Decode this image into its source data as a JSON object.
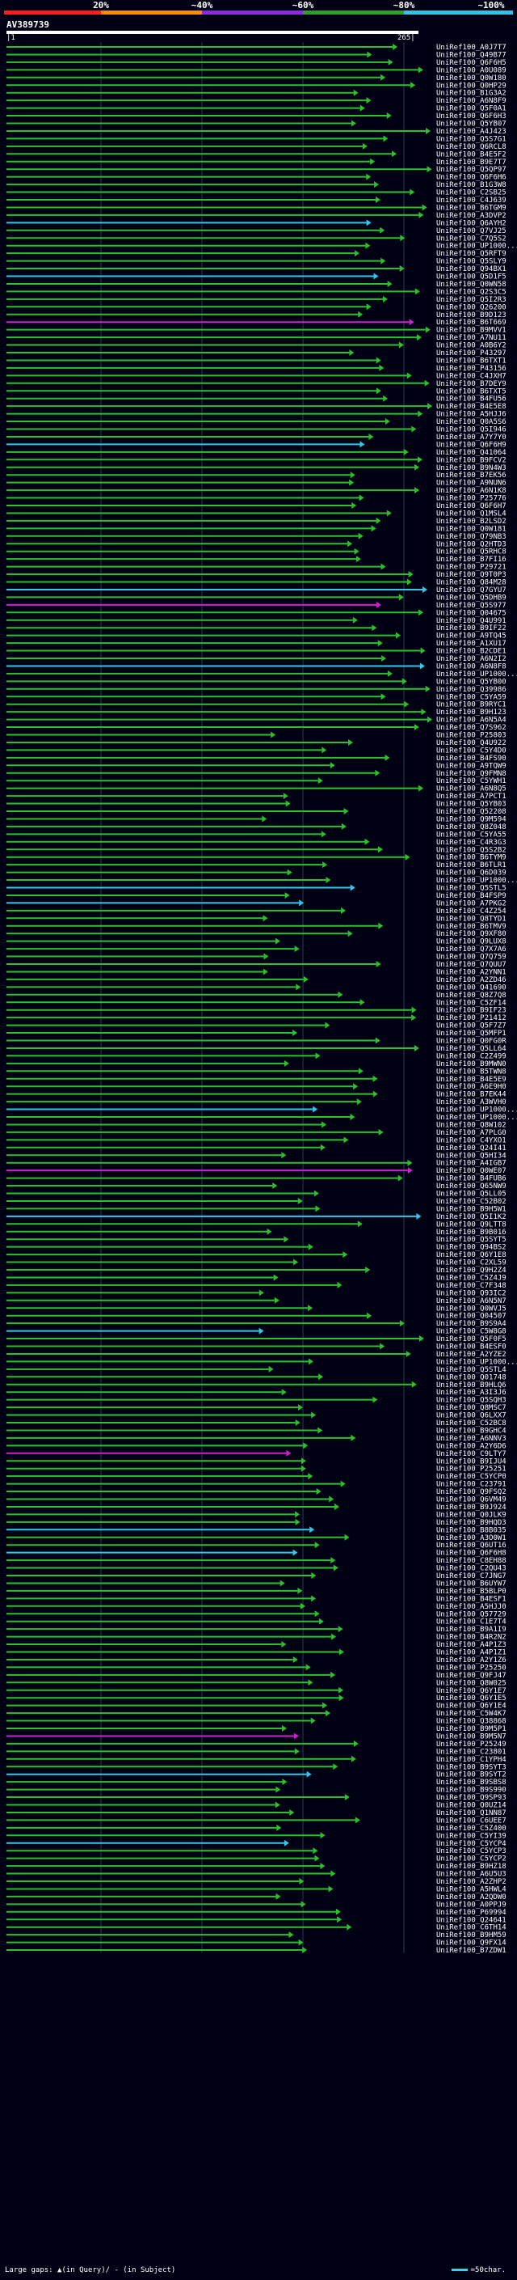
{
  "legend": {
    "marks": [
      "20%",
      "~40%",
      "~60%",
      "~80%",
      "~100%"
    ],
    "colors": [
      "#ff1c1c",
      "#ff8c00",
      "#8a2be2",
      "#2e9e2e",
      "#31c3e6"
    ]
  },
  "query": {
    "title": "AV389739",
    "start": "|1",
    "end": "265|"
  },
  "hits": [
    "UniRef100_A0J7T7",
    "UniRef100_Q49B77",
    "UniRef100_Q6F6H5",
    "UniRef100_A0U089",
    "UniRef100_Q0W180",
    "UniRef100_Q0HP29",
    "UniRef100_B1G3A2",
    "UniRef100_A6N8F9",
    "UniRef100_Q5F0A1",
    "UniRef100_Q6F6H3",
    "UniRef100_Q5YB07",
    "UniRef100_A4J423",
    "UniRef100_Q5S7G1",
    "UniRef100_Q6RCL8",
    "UniRef100_B4E5F2",
    "UniRef100_B9E7T7",
    "UniRef100_Q5QP97",
    "UniRef100_Q6F6H6",
    "UniRef100_B1G3W8",
    "UniRef100_C2SB25",
    "UniRef100_C4J639",
    "UniRef100_B6TGM9",
    "UniRef100_A3DVP2",
    "UniRef100_Q6AYH2",
    "UniRef100_Q7VJ25",
    "UniRef100_C7Q5S2",
    "UniRef100_UP1000...",
    "UniRef100_Q5RFT9",
    "UniRef100_Q5SLY9",
    "UniRef100_Q94BX1",
    "UniRef100_Q5D1F5",
    "UniRef100_Q0WN58",
    "UniRef100_Q2S3C5",
    "UniRef100_Q5I2R3",
    "UniRef100_Q26200",
    "UniRef100_B9D123",
    "UniRef100_B6T669",
    "UniRef100_B9MVV1",
    "UniRef100_A7NU11",
    "UniRef100_A0B6Y2",
    "UniRef100_P43297",
    "UniRef100_B6TXT1",
    "UniRef100_P43156",
    "UniRef100_C4JXH7",
    "UniRef100_B7DEY9",
    "UniRef100_B6TXT5",
    "UniRef100_B4FU56",
    "UniRef100_B4E5E8",
    "UniRef100_A5HJJ6",
    "UniRef100_Q0A5S6",
    "UniRef100_Q5I946",
    "UniRef100_A7Y7Y0",
    "UniRef100_Q6F6H9",
    "UniRef100_Q41064",
    "UniRef100_B9FCV2",
    "UniRef100_B9N4W3",
    "UniRef100_B7EK56",
    "UniRef100_A9NUN6",
    "UniRef100_A6N1K8",
    "UniRef100_P25776",
    "UniRef100_Q6F6H7",
    "UniRef100_Q1MSL4",
    "UniRef100_B2LSD2",
    "UniRef100_Q0W181",
    "UniRef100_Q79NB3",
    "UniRef100_Q2HTD3",
    "UniRef100_Q5RHC8",
    "UniRef100_B7FI16",
    "UniRef100_P29721",
    "UniRef100_Q9T0P3",
    "UniRef100_Q84M28",
    "UniRef100_Q7GYU7",
    "UniRef100_Q5DHB9",
    "UniRef100_Q5S977",
    "UniRef100_Q04675",
    "UniRef100_Q4U991",
    "UniRef100_B9IF22",
    "UniRef100_A9TQ45",
    "UniRef100_A1XU17",
    "UniRef100_B2CDE1",
    "UniRef100_A6N2I2",
    "UniRef100_A6N8F8",
    "UniRef100_UP1000...",
    "UniRef100_Q5YB00",
    "UniRef100_Q39986",
    "UniRef100_C5YA59",
    "UniRef100_B9RYC1",
    "UniRef100_B9H123",
    "UniRef100_A6N5A4",
    "UniRef100_Q7S962",
    "UniRef100_P25803",
    "UniRef100_Q4U922",
    "UniRef100_C5Y4D0",
    "UniRef100_B4FS90",
    "UniRef100_A9TQW9",
    "UniRef100_Q9FMN8",
    "UniRef100_C5YWH1",
    "UniRef100_A6N8Q5",
    "UniRef100_A7PCT1",
    "UniRef100_Q5YB03",
    "UniRef100_Q52208",
    "UniRef100_Q9M594",
    "UniRef100_Q8Z048",
    "UniRef100_C5YA55",
    "UniRef100_C4R3G3",
    "UniRef100_Q5S2B2",
    "UniRef100_B6TYM9",
    "UniRef100_B6TLR1",
    "UniRef100_Q6D039",
    "UniRef100_UP1000...",
    "UniRef100_Q5STL5",
    "UniRef100_B4FSP9",
    "UniRef100_A7PKG2",
    "UniRef100_C4Z254",
    "UniRef100_Q8TYD1",
    "UniRef100_B6TMV9",
    "UniRef100_Q9XF80",
    "UniRef100_Q9LUX8",
    "UniRef100_Q7X7A6",
    "UniRef100_Q7Q759",
    "UniRef100_Q7QUU7",
    "UniRef100_A2YNN1",
    "UniRef100_A2ZD46",
    "UniRef100_Q41690",
    "UniRef100_Q8Z7Q8",
    "UniRef100_C5ZF14",
    "UniRef100_B9IF23",
    "UniRef100_P21412",
    "UniRef100_Q5F7Z7",
    "UniRef100_Q5MFP1",
    "UniRef100_Q0FG0R",
    "UniRef100_Q5LL64",
    "UniRef100_C2Z499",
    "UniRef100_B9MWN0",
    "UniRef100_B5TWN8",
    "UniRef100_B4E5E9",
    "UniRef100_A6E9H0",
    "UniRef100_B7EK44",
    "UniRef100_A3WVH0",
    "UniRef100_UP1000...",
    "UniRef100_UP1000...",
    "UniRef100_Q8W102",
    "UniRef100_A7PLG0",
    "UniRef100_C4YXO1",
    "UniRef100_Q24I41",
    "UniRef100_Q5HI34",
    "UniRef100_A4IGB7",
    "UniRef100_Q0WE07",
    "UniRef100_B4FUB6",
    "UniRef100_Q65NW9",
    "UniRef100_Q5LL05",
    "UniRef100_C52B02",
    "UniRef100_B9H5W1",
    "UniRef100_Q5I1K2",
    "UniRef100_Q9LTT8",
    "UniRef100_B9B016",
    "UniRef100_Q5SYT5",
    "UniRef100_Q94BS2",
    "UniRef100_Q6Y1E8",
    "UniRef100_C2XL59",
    "UniRef100_Q9H2Z4",
    "UniRef100_C5Z4J9",
    "UniRef100_C7F348",
    "UniRef100_Q93IC2",
    "UniRef100_A6N5N7",
    "UniRef100_Q0WVJ5",
    "UniRef100_Q04507",
    "UniRef100_B9S9A4",
    "UniRef100_C5W8G8",
    "UniRef100_Q5F0F5",
    "UniRef100_B4ESF0",
    "UniRef100_A2YZE2",
    "UniRef100_UP1000...",
    "UniRef100_Q5STL4",
    "UniRef100_Q01748",
    "UniRef100_B9HLQ6",
    "UniRef100_A3I3J6",
    "UniRef100_Q5SQH3",
    "UniRef100_Q8MSC7",
    "UniRef100_Q6LXX7",
    "UniRef100_C52BC8",
    "UniRef100_B9GHC4",
    "UniRef100_A6NNV3",
    "UniRef100_A2Y6D6",
    "UniRef100_C9LTY7",
    "UniRef100_B9IJU4",
    "UniRef100_P25251",
    "UniRef100_C5YCP0",
    "UniRef100_C23791",
    "UniRef100_Q9FSQ2",
    "UniRef100_Q6VM49",
    "UniRef100_B9J924",
    "UniRef100_Q0JLK9",
    "UniRef100_B9HQD3",
    "UniRef100_B8B035",
    "UniRef100_A3O0W1",
    "UniRef100_Q6UT16",
    "UniRef100_Q6F6H8",
    "UniRef100_C8EH88",
    "UniRef100_C2QU43",
    "UniRef100_C7JNG7",
    "UniRef100_B6UYW7",
    "UniRef100_B5BLP0",
    "UniRef100_B4ESF1",
    "UniRef100_A5HJJ0",
    "UniRef100_Q57729",
    "UniRef100_C1E7T4",
    "UniRef100_B9A1I9",
    "UniRef100_B4R2N2",
    "UniRef100_A4P1Z3",
    "UniRef100_A4P1Z1",
    "UniRef100_A2Y1Z6",
    "UniRef100_P25250",
    "UniRef100_Q9FJ47",
    "UniRef100_Q8W025",
    "UniRef100_Q6Y1E7",
    "UniRef100_Q6Y1E5",
    "UniRef100_Q6Y1E4",
    "UniRef100_C5W4K7",
    "UniRef100_Q38868",
    "UniRef100_B9M5P1",
    "UniRef100_B9M5N7",
    "UniRef100_P25249",
    "UniRef100_C23801",
    "UniRef100_C1YPH4",
    "UniRef100_B9SYT3",
    "UniRef100_B9SYT2",
    "UniRef100_B9SBS8",
    "UniRef100_B9S990",
    "UniRef100_Q9SP93",
    "UniRef100_Q0UZ14",
    "UniRef100_Q1NN87",
    "UniRef100_C6UEE7",
    "UniRef100_C5Z400",
    "UniRef100_C5YI39",
    "UniRef100_C5YCP4",
    "UniRef100_C5YCP3",
    "UniRef100_C5YCP2",
    "UniRef100_B9HZ18",
    "UniRef100_A6U5U3",
    "UniRef100_A2ZHP2",
    "UniRef100_A5HWL4",
    "UniRef100_A2QDW0",
    "UniRef100_A0PPJ9",
    "UniRef100_P69994",
    "UniRef100_Q24641",
    "UniRef100_C6TH14",
    "UniRef100_B9HM59",
    "UniRef100_Q9FX14",
    "UniRef100_B7ZDW1"
  ],
  "footer": {
    "left": "Large gaps: ▲(in Query)/ - (in Subject)",
    "right": "=50char."
  }
}
